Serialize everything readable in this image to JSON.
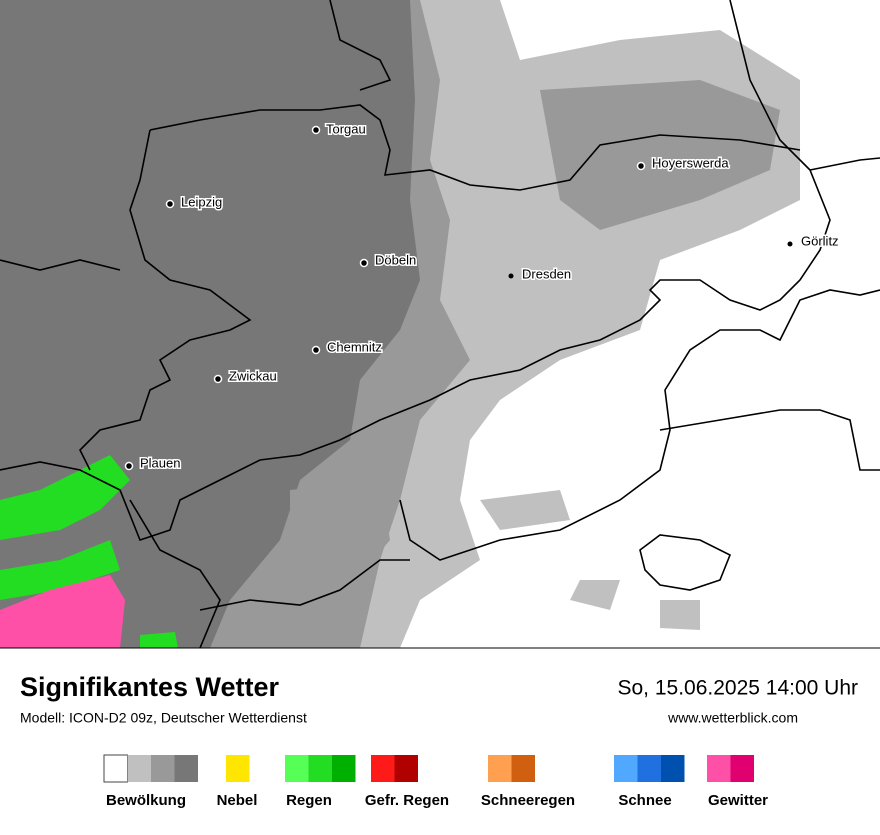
{
  "map": {
    "cities": [
      "Torgau",
      "Leipzig",
      "Döbeln",
      "Dresden",
      "Hoyerswerda",
      "Görlitz",
      "Chemnitz",
      "Zwickau",
      "Plauen"
    ]
  },
  "footer": {
    "title": "Signifikantes Wetter",
    "subtitle": "Modell: ICON-D2 09z, Deutscher Wetterdienst",
    "datetime": "So, 15.06.2025 14:00 Uhr",
    "website": "www.wetterblick.com"
  },
  "legend": [
    {
      "label": "Bewölkung",
      "colors": [
        "#ffffff",
        "#c0c0c0",
        "#999999",
        "#777777"
      ]
    },
    {
      "label": "Nebel",
      "colors": [
        "#ffe600"
      ]
    },
    {
      "label": "Regen",
      "colors": [
        "#55ff55",
        "#22dd22",
        "#00b000"
      ]
    },
    {
      "label": "Gefr. Regen",
      "colors": [
        "#ff1a1a",
        "#b00000"
      ]
    },
    {
      "label": "Schneeregen",
      "colors": [
        "#ffa050",
        "#d06010"
      ]
    },
    {
      "label": "Schnee",
      "colors": [
        "#50a8ff",
        "#2070e0",
        "#0050b0"
      ]
    },
    {
      "label": "Gewitter",
      "colors": [
        "#ff50a8",
        "#e00070"
      ]
    }
  ]
}
